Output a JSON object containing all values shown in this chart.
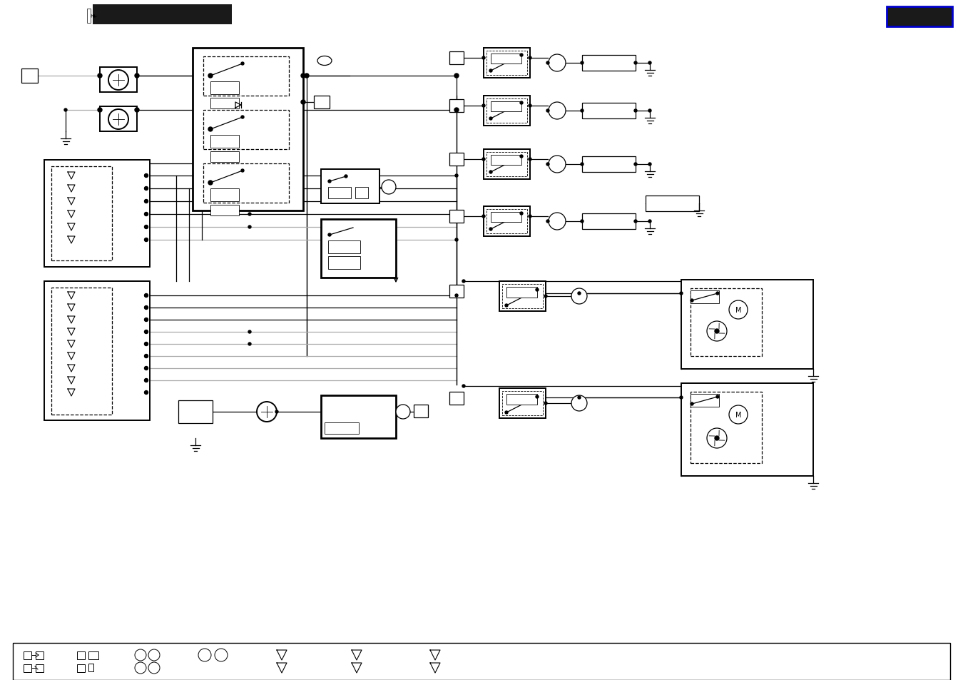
{
  "bg_color": "#ffffff",
  "header_bar_color": "#1a1a1a",
  "header_bar2_color": "#1a1a1a",
  "header_blue_border": "#0000cc",
  "fig_width": 13.5,
  "fig_height": 9.54,
  "dpi": 100
}
